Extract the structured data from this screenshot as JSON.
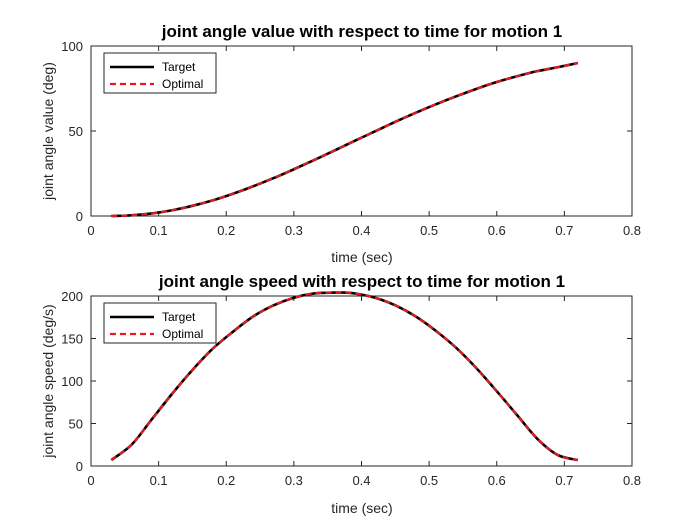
{
  "chart_data": [
    {
      "type": "line",
      "title": "joint angle value with respect to time for motion 1",
      "xlabel": "time (sec)",
      "ylabel": "joint angle value (deg)",
      "xlim": [
        0,
        0.8
      ],
      "ylim": [
        0,
        100
      ],
      "xticks": [
        "0",
        "0.1",
        "0.2",
        "0.3",
        "0.4",
        "0.5",
        "0.6",
        "0.7",
        "0.8"
      ],
      "yticks": [
        "0",
        "50",
        "100"
      ],
      "legend_position": "top-left",
      "x": [
        0.03,
        0.06,
        0.09,
        0.12,
        0.15,
        0.18,
        0.21,
        0.24,
        0.27,
        0.3,
        0.33,
        0.36,
        0.39,
        0.42,
        0.45,
        0.48,
        0.51,
        0.54,
        0.57,
        0.6,
        0.63,
        0.66,
        0.69,
        0.72
      ],
      "series": [
        {
          "name": "Target",
          "color": "#000000",
          "style": "solid",
          "values": [
            0.0,
            0.4,
            1.5,
            3.4,
            6.0,
            9.2,
            13.1,
            17.5,
            22.3,
            27.5,
            32.9,
            38.5,
            44.2,
            49.8,
            55.4,
            60.7,
            65.7,
            70.4,
            74.8,
            78.8,
            82.2,
            85.2,
            87.5,
            90.0
          ]
        },
        {
          "name": "Optimal",
          "color": "#e8191e",
          "style": "dashed",
          "values": [
            0.0,
            0.4,
            1.5,
            3.4,
            6.0,
            9.2,
            13.1,
            17.5,
            22.3,
            27.5,
            32.9,
            38.5,
            44.2,
            49.8,
            55.4,
            60.7,
            65.7,
            70.4,
            74.8,
            78.8,
            82.2,
            85.2,
            87.5,
            90.0
          ]
        }
      ]
    },
    {
      "type": "line",
      "title": "joint angle speed with respect to time for motion 1",
      "xlabel": "time (sec)",
      "ylabel": "joint angle speed (deg/s)",
      "xlim": [
        0,
        0.8
      ],
      "ylim": [
        0,
        200
      ],
      "xticks": [
        "0",
        "0.1",
        "0.2",
        "0.3",
        "0.4",
        "0.5",
        "0.6",
        "0.7",
        "0.8"
      ],
      "yticks": [
        "0",
        "50",
        "100",
        "150",
        "200"
      ],
      "legend_position": "top-left",
      "x": [
        0.03,
        0.06,
        0.09,
        0.12,
        0.15,
        0.18,
        0.21,
        0.24,
        0.27,
        0.3,
        0.33,
        0.36,
        0.375,
        0.39,
        0.42,
        0.45,
        0.48,
        0.51,
        0.54,
        0.57,
        0.6,
        0.63,
        0.66,
        0.69,
        0.72
      ],
      "series": [
        {
          "name": "Target",
          "color": "#000000",
          "style": "solid",
          "values": [
            7,
            25,
            55,
            85,
            113,
            138,
            158,
            176,
            189,
            198,
            203,
            204,
            204,
            203,
            198,
            189,
            176,
            159,
            139,
            115,
            88,
            60,
            32,
            13,
            7
          ]
        },
        {
          "name": "Optimal",
          "color": "#e8191e",
          "style": "dashed",
          "values": [
            7,
            25,
            55,
            85,
            113,
            138,
            158,
            176,
            189,
            198,
            203,
            204,
            204,
            203,
            198,
            189,
            176,
            159,
            139,
            115,
            88,
            60,
            32,
            13,
            7
          ]
        }
      ]
    }
  ]
}
